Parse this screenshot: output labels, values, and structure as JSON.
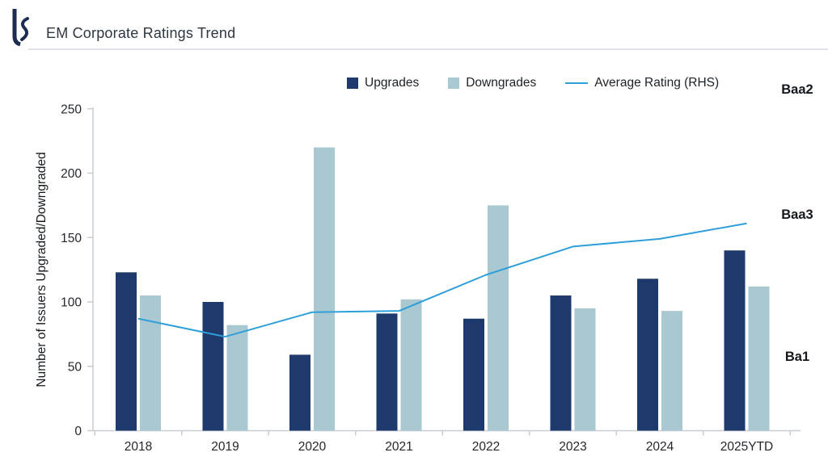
{
  "header": {
    "title": "EM Corporate Ratings Trend",
    "logo": "LS"
  },
  "colors": {
    "upgrades_bar": "#1e3a6d",
    "downgrades_bar": "#a9c8d2",
    "rating_line": "#2f9fd9",
    "axis": "#c7cdd3",
    "tick_text": "#24282d",
    "title_text": "#2d3642",
    "logo_navy": "#1d2d52"
  },
  "chart_data": {
    "type": "bar",
    "title": "EM Corporate Ratings Trend",
    "categories": [
      "2018",
      "2019",
      "2020",
      "2021",
      "2022",
      "2023",
      "2024",
      "2025YTD"
    ],
    "series": [
      {
        "name": "Upgrades",
        "type": "bar",
        "color": "#1e3a6d",
        "values": [
          123,
          100,
          59,
          91,
          87,
          105,
          118,
          140
        ]
      },
      {
        "name": "Downgrades",
        "type": "bar",
        "color": "#a9c8d2",
        "values": [
          105,
          82,
          220,
          102,
          175,
          95,
          93,
          112
        ]
      },
      {
        "name": "Average Rating (RHS)",
        "type": "line",
        "color": "#2f9fd9",
        "axis": "right",
        "values_lhs_equivalent": [
          87,
          73,
          92,
          93,
          121,
          143,
          149,
          161
        ]
      }
    ],
    "xlabel": "",
    "ylabel": "Number of Issuers Upgraded/Downgraded",
    "yticks": [
      0,
      50,
      100,
      150,
      200,
      250
    ],
    "ylim": [
      0,
      250
    ],
    "grid": false,
    "legend_position": "top",
    "right_axis_labels": [
      {
        "label": "Baa2",
        "lhs_equivalent": 264
      },
      {
        "label": "Baa3",
        "lhs_equivalent": 167
      },
      {
        "label": "Ba1",
        "lhs_equivalent": 57
      }
    ]
  }
}
